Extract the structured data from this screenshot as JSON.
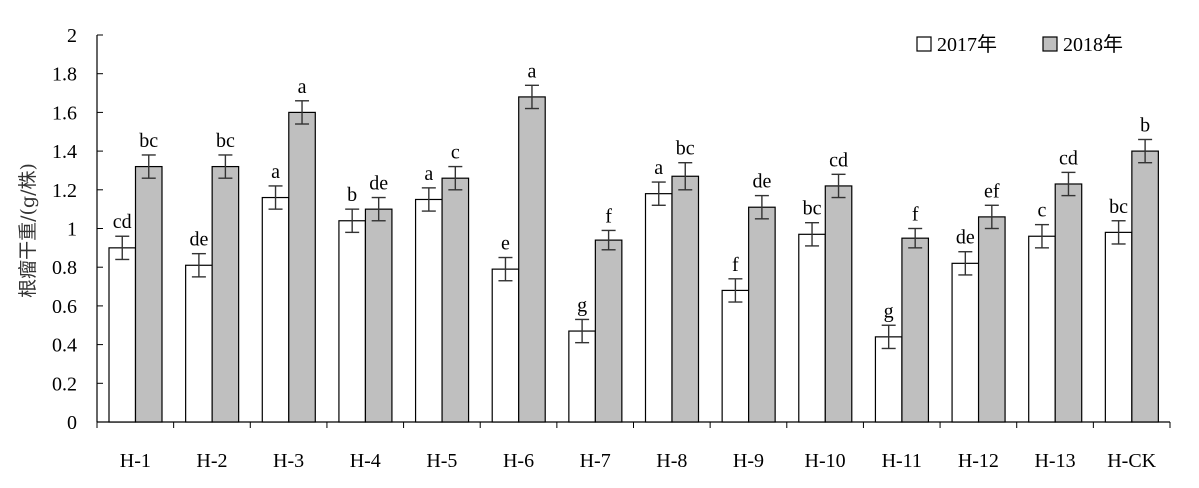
{
  "chart_data": {
    "type": "bar",
    "title": "",
    "xlabel": "",
    "ylabel": "根瘤干重/(g/株)",
    "ylim": [
      0,
      2
    ],
    "yticks": [
      "0",
      "0.2",
      "0.4",
      "0.6",
      "0.8",
      "1",
      "1.2",
      "1.4",
      "1.6",
      "1.8",
      "2"
    ],
    "grid": false,
    "legend_position": "top-right",
    "categories": [
      "H-1",
      "H-2",
      "H-3",
      "H-4",
      "H-5",
      "H-6",
      "H-7",
      "H-8",
      "H-9",
      "H-10",
      "H-11",
      "H-12",
      "H-13",
      "H-CK"
    ],
    "series": [
      {
        "name": "2017年",
        "color": "#ffffff",
        "values": [
          0.9,
          0.81,
          1.16,
          1.04,
          1.15,
          0.79,
          0.47,
          1.18,
          0.68,
          0.97,
          0.44,
          0.82,
          0.96,
          0.98
        ],
        "errors": [
          0.06,
          0.06,
          0.06,
          0.06,
          0.06,
          0.06,
          0.06,
          0.06,
          0.06,
          0.06,
          0.06,
          0.06,
          0.06,
          0.06
        ],
        "labels": [
          "cd",
          "de",
          "a",
          "b",
          "a",
          "e",
          "g",
          "a",
          "f",
          "bc",
          "g",
          "de",
          "c",
          "bc"
        ]
      },
      {
        "name": "2018年",
        "color": "#bfbfbf",
        "values": [
          1.32,
          1.32,
          1.6,
          1.1,
          1.26,
          1.68,
          0.94,
          1.27,
          1.11,
          1.22,
          0.95,
          1.06,
          1.23,
          1.4
        ],
        "errors": [
          0.06,
          0.06,
          0.06,
          0.06,
          0.06,
          0.06,
          0.05,
          0.07,
          0.06,
          0.06,
          0.05,
          0.06,
          0.06,
          0.06
        ],
        "labels": [
          "bc",
          "bc",
          "a",
          "de",
          "c",
          "a",
          "f",
          "bc",
          "de",
          "cd",
          "f",
          "ef",
          "cd",
          "b"
        ]
      }
    ]
  }
}
